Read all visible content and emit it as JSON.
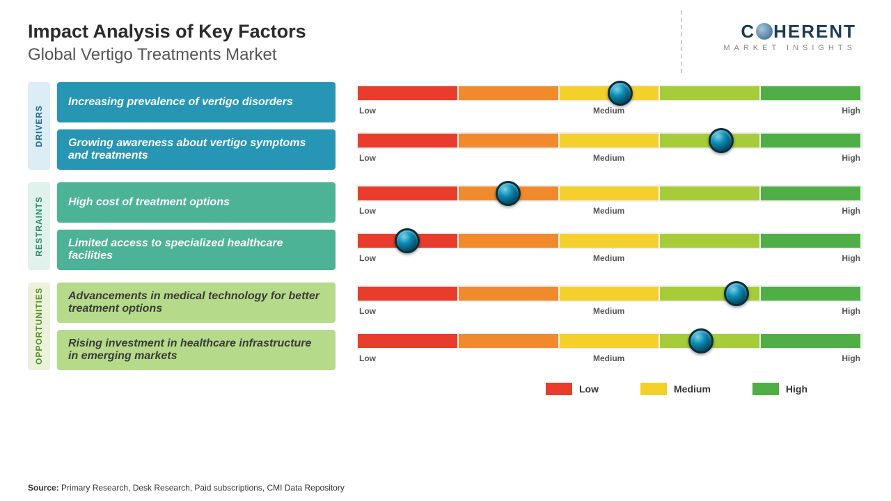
{
  "title": "Impact Analysis of Key Factors",
  "subtitle": "Global Vertigo Treatments Market",
  "logo": {
    "brand_left": "C",
    "brand_right": "HERENT",
    "tagline": "MARKET INSIGHTS"
  },
  "segment_colors": [
    "#e83d2c",
    "#f08a2c",
    "#f4d02c",
    "#a6cc3a",
    "#4fae46"
  ],
  "scale": {
    "low": "Low",
    "medium": "Medium",
    "high": "High"
  },
  "groups": [
    {
      "name": "DRIVERS",
      "tab_bg": "#dcedf5",
      "tab_color": "#1e6a87",
      "item_bg": "#2796b5",
      "item_color": "#ffffff",
      "factors": [
        {
          "label": "Increasing prevalence of vertigo disorders",
          "knob_pct": 52
        },
        {
          "label": "Growing awareness about vertigo symptoms and treatments",
          "knob_pct": 72
        }
      ]
    },
    {
      "name": "RESTRAINTS",
      "tab_bg": "#e1f2ec",
      "tab_color": "#2a8a6b",
      "item_bg": "#4db396",
      "item_color": "#ffffff",
      "factors": [
        {
          "label": "High cost of treatment options",
          "knob_pct": 30
        },
        {
          "label": "Limited access to specialized healthcare facilities",
          "knob_pct": 10
        }
      ]
    },
    {
      "name": "OPPORTUNITIES",
      "tab_bg": "#eaf3d9",
      "tab_color": "#5a8a2a",
      "item_bg": "#b5db8a",
      "item_color": "#3a3a3a",
      "factors": [
        {
          "label": "Advancements in medical technology for better treatment options",
          "knob_pct": 75
        },
        {
          "label": "Rising investment in healthcare infrastructure in emerging markets",
          "knob_pct": 68
        }
      ]
    }
  ],
  "legend": [
    {
      "label": "Low",
      "color": "#e83d2c"
    },
    {
      "label": "Medium",
      "color": "#f4d02c"
    },
    {
      "label": "High",
      "color": "#4fae46"
    }
  ],
  "source_label": "Source:",
  "source_text": " Primary Research, Desk Research, Paid subscriptions, CMI Data Repository"
}
